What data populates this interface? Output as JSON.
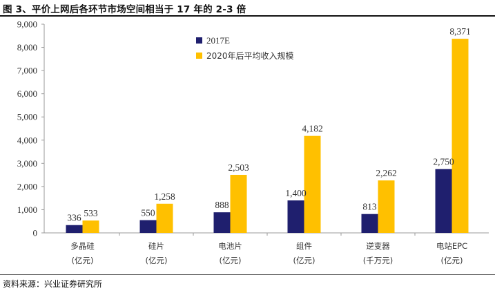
{
  "title": "图 3、平价上网后各环节市场空间相当于 17 年的 2-3 倍",
  "source": "资料来源：兴业证券研究所",
  "chart_data": {
    "type": "bar",
    "categories": [
      [
        "多晶硅",
        "(亿元)"
      ],
      [
        "硅片",
        "(亿元)"
      ],
      [
        "电池片",
        "(亿元)"
      ],
      [
        "组件",
        "(亿元)"
      ],
      [
        "逆变器",
        "(千万元)"
      ],
      [
        "电站EPC",
        "(亿元)"
      ]
    ],
    "series": [
      {
        "name": "2017E",
        "color": "#1f1f6e",
        "values": [
          336,
          550,
          888,
          1400,
          813,
          2750
        ],
        "labels": [
          "336",
          "550",
          "888",
          "1,400",
          "813",
          "2,750"
        ]
      },
      {
        "name": "2020年后平均收入规模",
        "color": "#ffc000",
        "values": [
          533,
          1258,
          2503,
          4182,
          2262,
          8371
        ],
        "labels": [
          "533",
          "1,258",
          "2,503",
          "4,182",
          "2,262",
          "8,371"
        ]
      }
    ],
    "ylim": [
      0,
      9000
    ],
    "yticks": [
      0,
      1000,
      2000,
      3000,
      4000,
      5000,
      6000,
      7000,
      8000,
      9000
    ],
    "ytick_labels": [
      "0",
      "1,000",
      "2,000",
      "3,000",
      "4,000",
      "5,000",
      "6,000",
      "7,000",
      "8,000",
      "9,000"
    ],
    "grid": false,
    "legend_position": "top-right"
  }
}
